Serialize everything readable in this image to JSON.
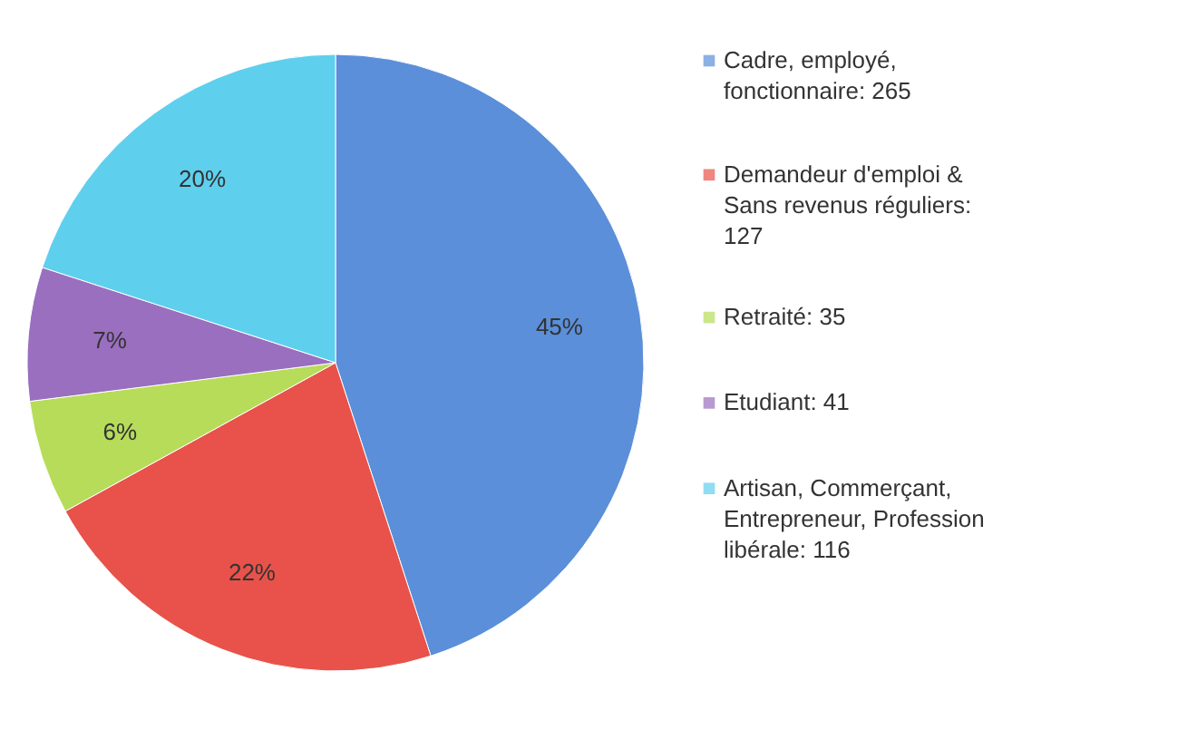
{
  "chart_data": {
    "type": "pie",
    "categories": [
      "Cadre, employé, fonctionnaire: 265",
      "Demandeur d'emploi & Sans revenus réguliers: 127",
      "Retraité: 35",
      "Etudiant: 41",
      "Artisan, Commerçant, Entrepreneur, Profession libérale: 116"
    ],
    "values": [
      45,
      22,
      6,
      7,
      20
    ],
    "colors": [
      "#5b8fd9",
      "#e8524a",
      "#b6dc5a",
      "#9a6fbf",
      "#5fcfee"
    ],
    "value_labels": [
      "45%",
      "22%",
      "6%",
      "7%",
      "20%"
    ],
    "legend": "right"
  }
}
